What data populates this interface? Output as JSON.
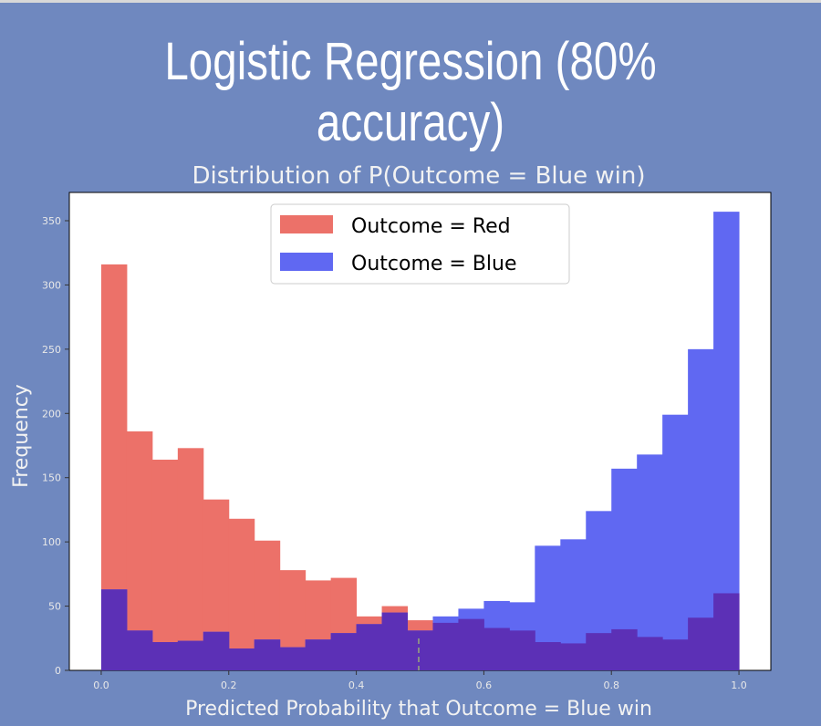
{
  "slide": {
    "title": "Logistic Regression (80% accuracy)"
  },
  "colors": {
    "background": "#6f88bf",
    "red_series": "#ec7169",
    "blue_series": "#6068f2",
    "overlap": "#5c30b6",
    "text_light": "#f2f2f2",
    "tick_text": "#e8e8e8"
  },
  "chart_data": {
    "type": "bar",
    "title": "Distribution of P(Outcome = Blue win)",
    "xlabel": "Predicted Probability that Outcome = Blue win",
    "ylabel": "Frequency",
    "xlim": [
      -0.05,
      1.05
    ],
    "ylim": [
      0,
      372
    ],
    "xticks": [
      0.0,
      0.2,
      0.4,
      0.6,
      0.8,
      1.0
    ],
    "xtick_labels": [
      "0.0",
      "0.2",
      "0.4",
      "0.6",
      "0.8",
      "1.0"
    ],
    "yticks": [
      0,
      50,
      100,
      150,
      200,
      250,
      300,
      350
    ],
    "ytick_labels": [
      "0",
      "50",
      "100",
      "150",
      "200",
      "250",
      "300",
      "350"
    ],
    "bin_edges": [
      0.0,
      0.04,
      0.08,
      0.12,
      0.16,
      0.2,
      0.24,
      0.28,
      0.32,
      0.36,
      0.4,
      0.44,
      0.48,
      0.52,
      0.56,
      0.6,
      0.64,
      0.68,
      0.72,
      0.76,
      0.8,
      0.84,
      0.88,
      0.92,
      0.96,
      1.0
    ],
    "series": [
      {
        "name": "Outcome = Red",
        "values": [
          316,
          186,
          164,
          173,
          133,
          118,
          101,
          78,
          70,
          72,
          42,
          50,
          39,
          37,
          40,
          33,
          31,
          22,
          21,
          29,
          32,
          26,
          24,
          41,
          60
        ]
      },
      {
        "name": "Outcome = Blue",
        "values": [
          63,
          31,
          22,
          23,
          30,
          17,
          24,
          18,
          24,
          29,
          36,
          45,
          31,
          42,
          48,
          54,
          53,
          97,
          102,
          124,
          157,
          168,
          199,
          250,
          357
        ]
      }
    ],
    "legend_position": "top-center",
    "grid": false
  }
}
